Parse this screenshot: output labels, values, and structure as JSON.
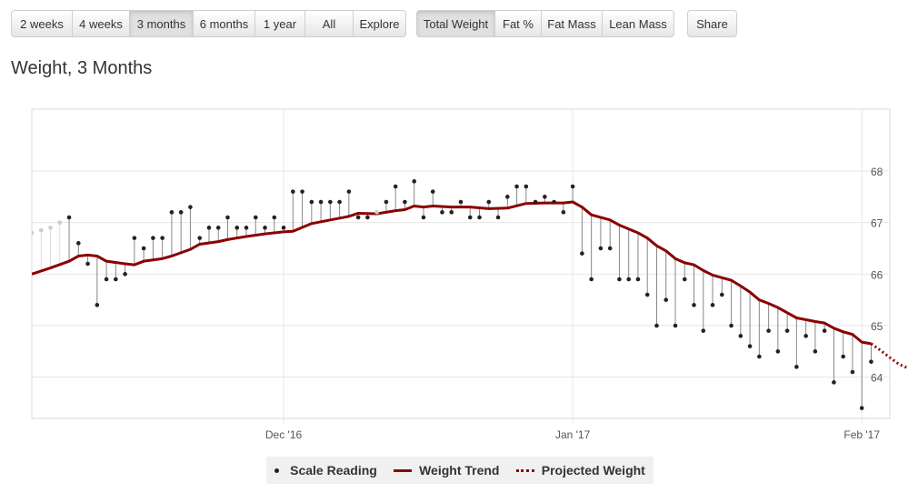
{
  "toolbar": {
    "range_buttons": [
      "2 weeks",
      "4 weeks",
      "3 months",
      "6 months",
      "1 year",
      "All",
      "Explore"
    ],
    "active_range": "3 months",
    "metric_buttons": [
      "Total Weight",
      "Fat %",
      "Fat Mass",
      "Lean Mass"
    ],
    "active_metric": "Total Weight",
    "share_label": "Share"
  },
  "page_title": "Weight, 3 Months",
  "colors": {
    "trend": "#8b0000",
    "reading": "#222222",
    "faded_reading": "#cccccc",
    "grid": "#e6e6e6",
    "legend_bg": "#f0f0f0"
  },
  "legend": {
    "scale_reading": "Scale Reading",
    "weight_trend": "Weight Trend",
    "projected_weight": "Projected Weight"
  },
  "chart_data": {
    "type": "line",
    "title": "Weight, 3 Months",
    "xlabel": "",
    "ylabel": "",
    "x_units": "days since 2016-11-03",
    "xlim": [
      0,
      92
    ],
    "ylim": [
      63.2,
      69.2
    ],
    "y_ticks": [
      64,
      65,
      66,
      67,
      68
    ],
    "x_ticks": [
      {
        "x": 27,
        "label": "Dec '16"
      },
      {
        "x": 58,
        "label": "Jan '17"
      },
      {
        "x": 89,
        "label": "Feb '17"
      }
    ],
    "grid": true,
    "legend_position": "bottom-center",
    "series": [
      {
        "name": "Scale Reading",
        "style": "points",
        "points": [
          [
            0,
            66.8,
            1
          ],
          [
            1,
            66.85,
            1
          ],
          [
            2,
            66.9,
            1
          ],
          [
            3,
            67.0,
            1
          ],
          [
            4,
            67.1,
            0
          ],
          [
            5,
            66.6,
            0
          ],
          [
            6,
            66.2,
            0
          ],
          [
            7,
            65.4,
            0
          ],
          [
            8,
            65.9,
            0
          ],
          [
            9,
            65.9,
            0
          ],
          [
            10,
            66.0,
            0
          ],
          [
            11,
            66.7,
            0
          ],
          [
            12,
            66.5,
            0
          ],
          [
            13,
            66.7,
            0
          ],
          [
            14,
            66.7,
            0
          ],
          [
            15,
            67.2,
            0
          ],
          [
            16,
            67.2,
            0
          ],
          [
            17,
            67.3,
            0
          ],
          [
            18,
            66.7,
            0
          ],
          [
            19,
            66.9,
            0
          ],
          [
            20,
            66.9,
            0
          ],
          [
            21,
            67.1,
            0
          ],
          [
            22,
            66.9,
            0
          ],
          [
            23,
            66.9,
            0
          ],
          [
            24,
            67.1,
            0
          ],
          [
            25,
            66.9,
            0
          ],
          [
            26,
            67.1,
            0
          ],
          [
            27,
            66.9,
            0
          ],
          [
            28,
            67.6,
            0
          ],
          [
            29,
            67.6,
            0
          ],
          [
            30,
            67.4,
            0
          ],
          [
            31,
            67.4,
            0
          ],
          [
            32,
            67.4,
            0
          ],
          [
            33,
            67.4,
            0
          ],
          [
            34,
            67.6,
            0
          ],
          [
            35,
            67.1,
            0
          ],
          [
            36,
            67.1,
            0
          ],
          [
            37,
            67.2,
            1
          ],
          [
            38,
            67.4,
            0
          ],
          [
            39,
            67.7,
            0
          ],
          [
            40,
            67.4,
            0
          ],
          [
            41,
            67.8,
            0
          ],
          [
            42,
            67.1,
            0
          ],
          [
            43,
            67.6,
            0
          ],
          [
            44,
            67.2,
            0
          ],
          [
            45,
            67.2,
            0
          ],
          [
            46,
            67.4,
            0
          ],
          [
            47,
            67.1,
            0
          ],
          [
            48,
            67.1,
            0
          ],
          [
            49,
            67.4,
            0
          ],
          [
            50,
            67.1,
            0
          ],
          [
            51,
            67.5,
            0
          ],
          [
            52,
            67.7,
            0
          ],
          [
            53,
            67.7,
            0
          ],
          [
            54,
            67.4,
            0
          ],
          [
            55,
            67.5,
            0
          ],
          [
            56,
            67.4,
            0
          ],
          [
            57,
            67.2,
            0
          ],
          [
            58,
            67.7,
            0
          ],
          [
            59,
            66.4,
            0
          ],
          [
            60,
            65.9,
            0
          ],
          [
            61,
            66.5,
            0
          ],
          [
            62,
            66.5,
            0
          ],
          [
            63,
            65.9,
            0
          ],
          [
            64,
            65.9,
            0
          ],
          [
            65,
            65.9,
            0
          ],
          [
            66,
            65.6,
            0
          ],
          [
            67,
            65.0,
            0
          ],
          [
            68,
            65.5,
            0
          ],
          [
            69,
            65.0,
            0
          ],
          [
            70,
            65.9,
            0
          ],
          [
            71,
            65.4,
            0
          ],
          [
            72,
            64.9,
            0
          ],
          [
            73,
            65.4,
            0
          ],
          [
            74,
            65.6,
            0
          ],
          [
            75,
            65.0,
            0
          ],
          [
            76,
            64.8,
            0
          ],
          [
            77,
            64.6,
            0
          ],
          [
            78,
            64.4,
            0
          ],
          [
            79,
            64.9,
            0
          ],
          [
            80,
            64.5,
            0
          ],
          [
            81,
            64.9,
            0
          ],
          [
            82,
            64.2,
            0
          ],
          [
            83,
            64.8,
            0
          ],
          [
            84,
            64.5,
            0
          ],
          [
            85,
            64.9,
            0
          ],
          [
            86,
            63.9,
            0
          ],
          [
            87,
            64.4,
            0
          ],
          [
            88,
            64.1,
            0
          ],
          [
            89,
            63.4,
            0
          ],
          [
            90,
            64.3,
            0
          ]
        ]
      },
      {
        "name": "Weight Trend",
        "style": "line",
        "points": [
          [
            0,
            66.0
          ],
          [
            2,
            66.12
          ],
          [
            4,
            66.25
          ],
          [
            5,
            66.35
          ],
          [
            6,
            66.37
          ],
          [
            7,
            66.35
          ],
          [
            8,
            66.25
          ],
          [
            10,
            66.2
          ],
          [
            11,
            66.18
          ],
          [
            12,
            66.25
          ],
          [
            14,
            66.3
          ],
          [
            15,
            66.35
          ],
          [
            17,
            66.48
          ],
          [
            18,
            66.58
          ],
          [
            20,
            66.63
          ],
          [
            21,
            66.67
          ],
          [
            23,
            66.73
          ],
          [
            25,
            66.78
          ],
          [
            27,
            66.82
          ],
          [
            28,
            66.83
          ],
          [
            30,
            66.98
          ],
          [
            32,
            67.05
          ],
          [
            34,
            67.12
          ],
          [
            35,
            67.18
          ],
          [
            37,
            67.17
          ],
          [
            39,
            67.23
          ],
          [
            40,
            67.25
          ],
          [
            41,
            67.32
          ],
          [
            42,
            67.3
          ],
          [
            43,
            67.32
          ],
          [
            45,
            67.3
          ],
          [
            47,
            67.3
          ],
          [
            49,
            67.27
          ],
          [
            51,
            67.28
          ],
          [
            53,
            67.37
          ],
          [
            55,
            67.38
          ],
          [
            57,
            67.38
          ],
          [
            58,
            67.4
          ],
          [
            59,
            67.3
          ],
          [
            60,
            67.15
          ],
          [
            62,
            67.05
          ],
          [
            63,
            66.95
          ],
          [
            65,
            66.8
          ],
          [
            66,
            66.7
          ],
          [
            67,
            66.55
          ],
          [
            68,
            66.45
          ],
          [
            69,
            66.3
          ],
          [
            70,
            66.22
          ],
          [
            71,
            66.18
          ],
          [
            72,
            66.07
          ],
          [
            73,
            65.98
          ],
          [
            74,
            65.93
          ],
          [
            75,
            65.88
          ],
          [
            76,
            65.77
          ],
          [
            77,
            65.65
          ],
          [
            78,
            65.5
          ],
          [
            79,
            65.43
          ],
          [
            80,
            65.35
          ],
          [
            81,
            65.25
          ],
          [
            82,
            65.15
          ],
          [
            84,
            65.08
          ],
          [
            85,
            65.05
          ],
          [
            86,
            64.95
          ],
          [
            87,
            64.88
          ],
          [
            88,
            64.83
          ],
          [
            89,
            64.68
          ],
          [
            90,
            64.65
          ]
        ]
      },
      {
        "name": "Projected Weight",
        "style": "dotted",
        "points": [
          [
            90,
            64.65
          ],
          [
            91,
            64.52
          ],
          [
            92,
            64.38
          ],
          [
            93,
            64.25
          ],
          [
            94,
            64.17
          ]
        ]
      }
    ]
  }
}
